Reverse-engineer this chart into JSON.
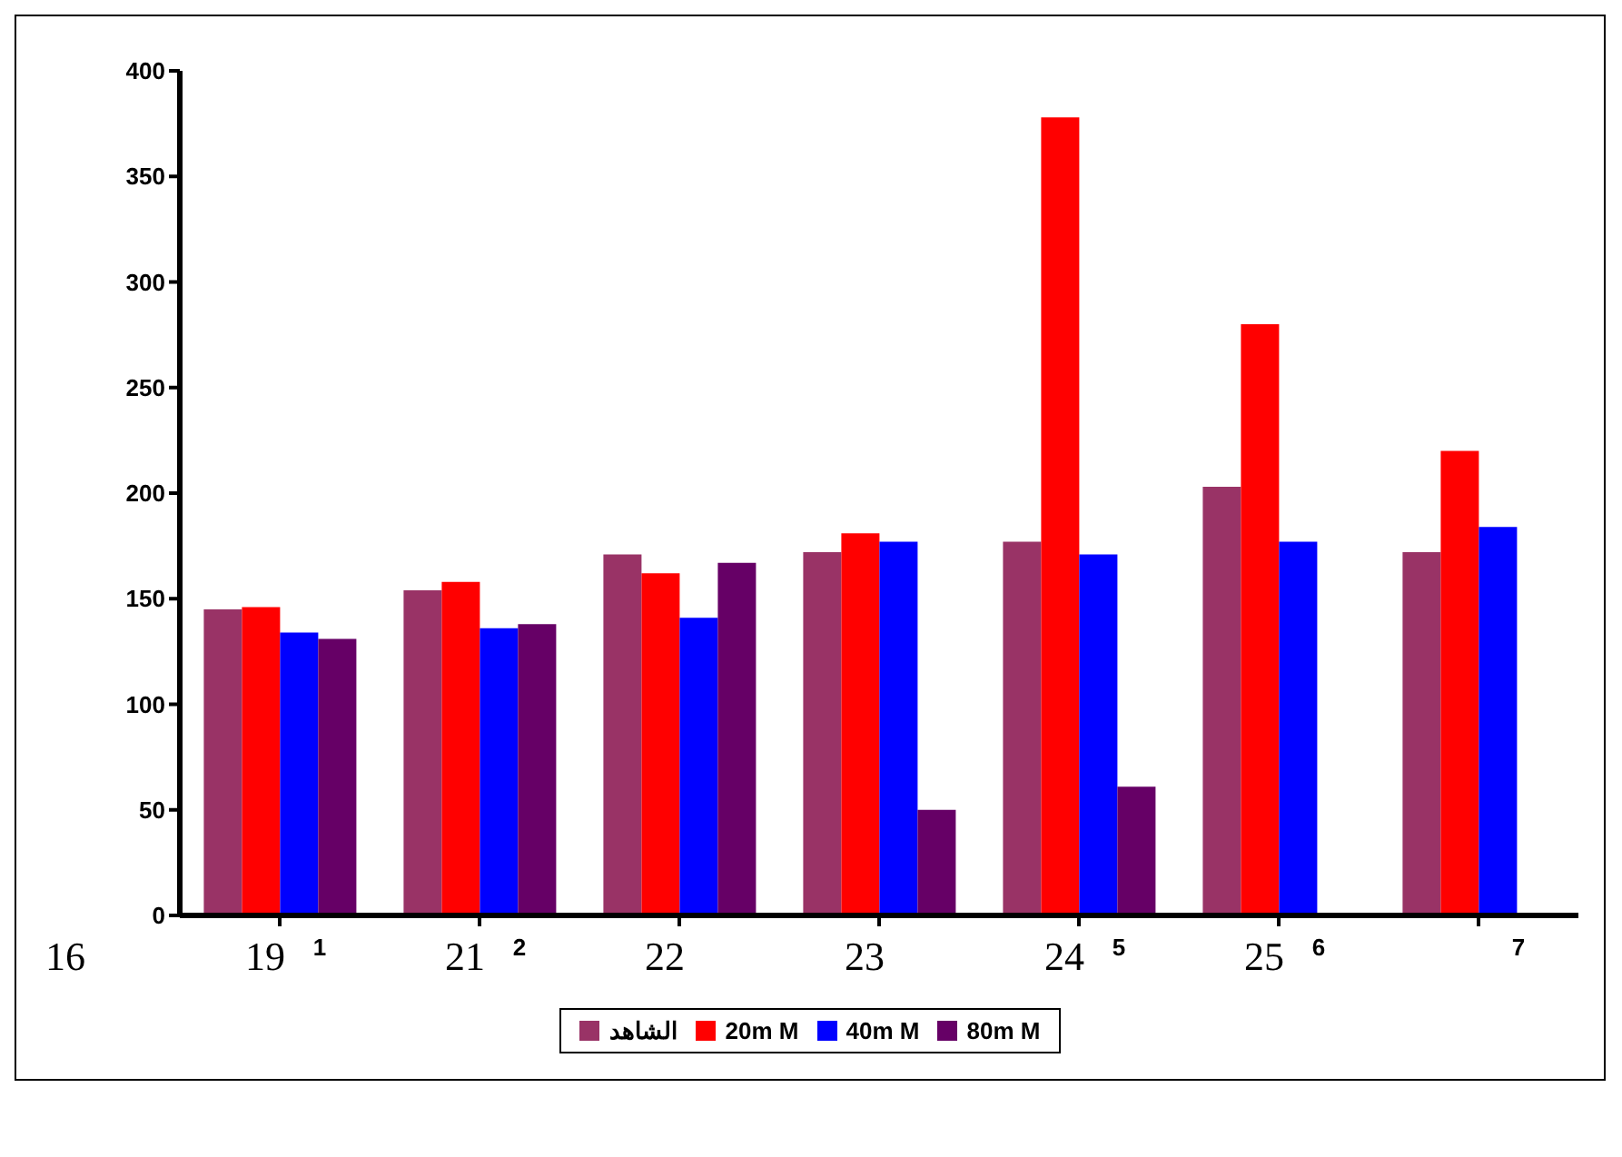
{
  "chart_data": {
    "type": "bar",
    "categories": [
      "1",
      "2",
      null,
      null,
      "5",
      "6",
      "7"
    ],
    "series": [
      {
        "name": "الشاهد",
        "color": "#993366",
        "values": [
          145,
          154,
          171,
          172,
          177,
          203,
          172
        ]
      },
      {
        "name": "20m M",
        "color": "#ff0000",
        "values": [
          146,
          158,
          162,
          181,
          378,
          280,
          220
        ]
      },
      {
        "name": "40m M",
        "color": "#0000ff",
        "values": [
          134,
          136,
          141,
          177,
          171,
          177,
          184
        ]
      },
      {
        "name": "80m M",
        "color": "#660066",
        "values": [
          131,
          138,
          167,
          50,
          61,
          null,
          null
        ]
      }
    ],
    "ylim": [
      0,
      400
    ],
    "yticks": [
      0,
      50,
      100,
      150,
      200,
      250,
      300,
      350,
      400
    ],
    "legend": "bottom",
    "annotations": [
      "16",
      "19",
      "21",
      "22",
      "23",
      "24",
      "25"
    ]
  }
}
